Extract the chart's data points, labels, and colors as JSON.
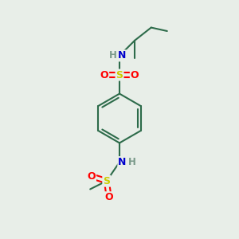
{
  "background_color": "#e8eee8",
  "bond_color": "#2d6b4a",
  "sulfur_color": "#cccc00",
  "oxygen_color": "#ff0000",
  "nitrogen_color": "#0000cc",
  "hydrogen_color": "#7a9a8a",
  "line_width": 1.5,
  "double_lw": 1.5,
  "figsize": [
    3.0,
    3.0
  ],
  "dpi": 100,
  "xlim": [
    0,
    10
  ],
  "ylim": [
    0,
    10
  ]
}
